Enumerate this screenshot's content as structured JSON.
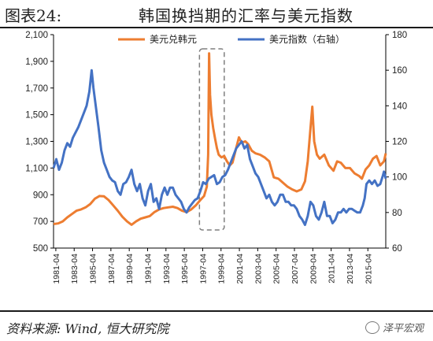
{
  "header": {
    "figure_number": "图表24:",
    "title": "韩国换挡期的汇率与美元指数"
  },
  "footer": {
    "source": "资料来源: Wind, 恒大研究院",
    "brand": "泽平宏观"
  },
  "colors": {
    "krw": "#ED7D31",
    "dxy": "#4472C4",
    "axis": "#000000",
    "highlight_box": "#7f7f7f"
  },
  "chart_data": {
    "type": "line",
    "title": "",
    "xlabel": "",
    "ylabel": "",
    "x_range": [
      1981.0,
      2017.2
    ],
    "x_ticks": [
      "1981-04",
      "1983-04",
      "1985-04",
      "1987-04",
      "1989-04",
      "1991-04",
      "1993-04",
      "1995-04",
      "1997-04",
      "1999-04",
      "2001-04",
      "2003-04",
      "2005-04",
      "2007-04",
      "2009-04",
      "2011-04",
      "2013-04",
      "2015-04"
    ],
    "y_left": {
      "min": 500,
      "max": 2100,
      "ticks": [
        "500",
        "700",
        "900",
        "1,100",
        "1,300",
        "1,500",
        "1,700",
        "1,900",
        "2,100"
      ]
    },
    "y_right": {
      "min": 60,
      "max": 180,
      "ticks": [
        "60",
        "80",
        "100",
        "120",
        "140",
        "160",
        "180"
      ]
    },
    "legend_position": "top",
    "grid": false,
    "highlight_box": {
      "x_from": 1996.9,
      "x_to": 1999.6
    },
    "series": [
      {
        "name": "美元兑韩元",
        "axis": "left",
        "color": "#ED7D31",
        "points": [
          [
            1981.0,
            680
          ],
          [
            1981.5,
            685
          ],
          [
            1982.0,
            700
          ],
          [
            1982.5,
            730
          ],
          [
            1983.0,
            755
          ],
          [
            1983.5,
            780
          ],
          [
            1984.0,
            790
          ],
          [
            1984.5,
            805
          ],
          [
            1985.0,
            830
          ],
          [
            1985.5,
            870
          ],
          [
            1986.0,
            890
          ],
          [
            1986.5,
            888
          ],
          [
            1987.0,
            860
          ],
          [
            1987.5,
            820
          ],
          [
            1988.0,
            780
          ],
          [
            1988.5,
            735
          ],
          [
            1989.0,
            700
          ],
          [
            1989.5,
            675
          ],
          [
            1990.0,
            700
          ],
          [
            1990.5,
            720
          ],
          [
            1991.0,
            730
          ],
          [
            1991.5,
            740
          ],
          [
            1992.0,
            770
          ],
          [
            1992.5,
            790
          ],
          [
            1993.0,
            800
          ],
          [
            1993.5,
            805
          ],
          [
            1994.0,
            810
          ],
          [
            1994.5,
            800
          ],
          [
            1995.0,
            780
          ],
          [
            1995.5,
            770
          ],
          [
            1996.0,
            790
          ],
          [
            1996.5,
            820
          ],
          [
            1997.0,
            860
          ],
          [
            1997.4,
            890
          ],
          [
            1997.7,
            960
          ],
          [
            1997.85,
            1200
          ],
          [
            1997.95,
            1960
          ],
          [
            1998.05,
            1650
          ],
          [
            1998.2,
            1500
          ],
          [
            1998.4,
            1400
          ],
          [
            1998.6,
            1320
          ],
          [
            1998.8,
            1250
          ],
          [
            1999.0,
            1200
          ],
          [
            1999.3,
            1180
          ],
          [
            1999.6,
            1190
          ],
          [
            1999.9,
            1150
          ],
          [
            2000.2,
            1120
          ],
          [
            2000.5,
            1140
          ],
          [
            2000.9,
            1250
          ],
          [
            2001.2,
            1330
          ],
          [
            2001.5,
            1290
          ],
          [
            2001.9,
            1300
          ],
          [
            2002.2,
            1280
          ],
          [
            2002.6,
            1230
          ],
          [
            2003.0,
            1210
          ],
          [
            2003.5,
            1200
          ],
          [
            2004.0,
            1180
          ],
          [
            2004.5,
            1150
          ],
          [
            2005.0,
            1030
          ],
          [
            2005.5,
            1020
          ],
          [
            2006.0,
            990
          ],
          [
            2006.5,
            960
          ],
          [
            2007.0,
            940
          ],
          [
            2007.5,
            925
          ],
          [
            2008.0,
            940
          ],
          [
            2008.4,
            1000
          ],
          [
            2008.7,
            1150
          ],
          [
            2009.0,
            1400
          ],
          [
            2009.2,
            1560
          ],
          [
            2009.4,
            1300
          ],
          [
            2009.7,
            1200
          ],
          [
            2010.0,
            1170
          ],
          [
            2010.5,
            1200
          ],
          [
            2011.0,
            1120
          ],
          [
            2011.5,
            1080
          ],
          [
            2011.9,
            1150
          ],
          [
            2012.3,
            1140
          ],
          [
            2012.8,
            1100
          ],
          [
            2013.3,
            1100
          ],
          [
            2013.8,
            1060
          ],
          [
            2014.3,
            1040
          ],
          [
            2014.6,
            1020
          ],
          [
            2015.0,
            1090
          ],
          [
            2015.4,
            1120
          ],
          [
            2015.8,
            1170
          ],
          [
            2016.2,
            1190
          ],
          [
            2016.6,
            1120
          ],
          [
            2017.0,
            1150
          ],
          [
            2017.2,
            1210
          ]
        ]
      },
      {
        "name": "美元指数（右轴）",
        "axis": "right",
        "color": "#4472C4",
        "points": [
          [
            1981.0,
            105
          ],
          [
            1981.3,
            110
          ],
          [
            1981.6,
            104
          ],
          [
            1981.9,
            108
          ],
          [
            1982.2,
            115
          ],
          [
            1982.5,
            119
          ],
          [
            1982.8,
            117
          ],
          [
            1983.1,
            122
          ],
          [
            1983.4,
            125
          ],
          [
            1983.7,
            128
          ],
          [
            1984.0,
            132
          ],
          [
            1984.3,
            136
          ],
          [
            1984.6,
            140
          ],
          [
            1984.9,
            148
          ],
          [
            1985.15,
            160
          ],
          [
            1985.35,
            150
          ],
          [
            1985.6,
            140
          ],
          [
            1985.9,
            128
          ],
          [
            1986.2,
            115
          ],
          [
            1986.5,
            108
          ],
          [
            1986.8,
            104
          ],
          [
            1987.1,
            100
          ],
          [
            1987.4,
            98
          ],
          [
            1987.7,
            97
          ],
          [
            1988.0,
            92
          ],
          [
            1988.3,
            90
          ],
          [
            1988.6,
            96
          ],
          [
            1988.9,
            97
          ],
          [
            1989.2,
            100
          ],
          [
            1989.5,
            104
          ],
          [
            1989.8,
            96
          ],
          [
            1990.1,
            92
          ],
          [
            1990.4,
            96
          ],
          [
            1990.7,
            88
          ],
          [
            1991.0,
            84
          ],
          [
            1991.3,
            92
          ],
          [
            1991.6,
            96
          ],
          [
            1991.9,
            86
          ],
          [
            1992.2,
            88
          ],
          [
            1992.5,
            82
          ],
          [
            1992.8,
            90
          ],
          [
            1993.1,
            94
          ],
          [
            1993.4,
            90
          ],
          [
            1993.7,
            94
          ],
          [
            1994.0,
            94
          ],
          [
            1994.3,
            90
          ],
          [
            1994.6,
            88
          ],
          [
            1994.9,
            86
          ],
          [
            1995.2,
            82
          ],
          [
            1995.5,
            80
          ],
          [
            1995.8,
            83
          ],
          [
            1996.1,
            85
          ],
          [
            1996.4,
            87
          ],
          [
            1996.7,
            88
          ],
          [
            1997.0,
            92
          ],
          [
            1997.3,
            97
          ],
          [
            1997.6,
            96
          ],
          [
            1997.9,
            99
          ],
          [
            1998.2,
            100
          ],
          [
            1998.5,
            101
          ],
          [
            1998.8,
            96
          ],
          [
            1999.1,
            97
          ],
          [
            1999.4,
            100
          ],
          [
            1999.7,
            101
          ],
          [
            2000.0,
            104
          ],
          [
            2000.3,
            108
          ],
          [
            2000.6,
            112
          ],
          [
            2000.9,
            116
          ],
          [
            2001.2,
            118
          ],
          [
            2001.5,
            120
          ],
          [
            2001.8,
            116
          ],
          [
            2002.1,
            118
          ],
          [
            2002.4,
            110
          ],
          [
            2002.7,
            106
          ],
          [
            2003.0,
            102
          ],
          [
            2003.3,
            100
          ],
          [
            2003.6,
            96
          ],
          [
            2003.9,
            92
          ],
          [
            2004.2,
            88
          ],
          [
            2004.5,
            90
          ],
          [
            2004.8,
            86
          ],
          [
            2005.1,
            84
          ],
          [
            2005.4,
            86
          ],
          [
            2005.7,
            90
          ],
          [
            2006.0,
            90
          ],
          [
            2006.3,
            86
          ],
          [
            2006.6,
            86
          ],
          [
            2006.9,
            84
          ],
          [
            2007.2,
            84
          ],
          [
            2007.5,
            82
          ],
          [
            2007.8,
            78
          ],
          [
            2008.1,
            76
          ],
          [
            2008.4,
            73
          ],
          [
            2008.7,
            78
          ],
          [
            2009.0,
            86
          ],
          [
            2009.3,
            84
          ],
          [
            2009.6,
            78
          ],
          [
            2009.9,
            76
          ],
          [
            2010.2,
            80
          ],
          [
            2010.5,
            86
          ],
          [
            2010.8,
            78
          ],
          [
            2011.1,
            78
          ],
          [
            2011.4,
            74
          ],
          [
            2011.7,
            76
          ],
          [
            2012.0,
            80
          ],
          [
            2012.3,
            80
          ],
          [
            2012.6,
            82
          ],
          [
            2012.9,
            80
          ],
          [
            2013.2,
            82
          ],
          [
            2013.5,
            82
          ],
          [
            2013.8,
            81
          ],
          [
            2014.1,
            80
          ],
          [
            2014.4,
            80
          ],
          [
            2014.7,
            84
          ],
          [
            2014.9,
            88
          ],
          [
            2015.1,
            96
          ],
          [
            2015.4,
            98
          ],
          [
            2015.7,
            96
          ],
          [
            2016.0,
            98
          ],
          [
            2016.3,
            95
          ],
          [
            2016.6,
            96
          ],
          [
            2016.9,
            101
          ],
          [
            2017.0,
            103
          ],
          [
            2017.2,
            99
          ]
        ]
      }
    ]
  }
}
